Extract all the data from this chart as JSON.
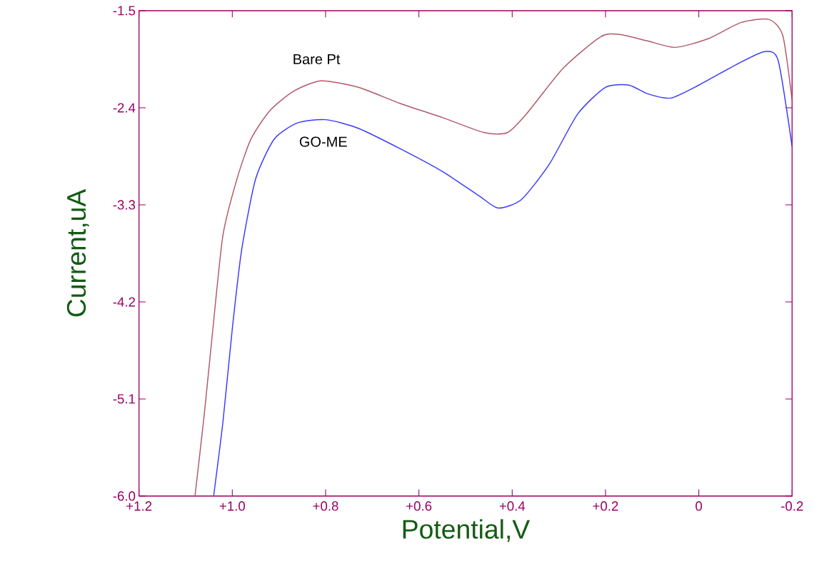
{
  "chart_data": {
    "type": "line",
    "xlabel": "Potential,V",
    "ylabel": "Current,uA",
    "xlim": [
      1.2,
      -0.2
    ],
    "ylim": [
      -6.0,
      -1.5
    ],
    "xticks": [
      {
        "value": 1.2,
        "label": "+1.2"
      },
      {
        "value": 1.0,
        "label": "+1.0"
      },
      {
        "value": 0.8,
        "label": "+0.8"
      },
      {
        "value": 0.6,
        "label": "+0.6"
      },
      {
        "value": 0.4,
        "label": "+0.4"
      },
      {
        "value": 0.2,
        "label": "+0.2"
      },
      0,
      -0.2
    ],
    "yticks": [
      -1.5,
      -2.4,
      -3.3,
      -4.2,
      -5.1,
      {
        "value": -6.0,
        "label": "-6.0"
      }
    ],
    "series": [
      {
        "name": "Bare Pt",
        "color": "#b05a6a",
        "x": [
          1.08,
          1.06,
          1.04,
          1.02,
          0.99,
          0.96,
          0.92,
          0.87,
          0.81,
          0.73,
          0.64,
          0.55,
          0.46,
          0.41,
          0.37,
          0.29,
          0.21,
          0.17,
          0.11,
          0.05,
          -0.02,
          -0.09,
          -0.15,
          -0.18,
          -0.2
        ],
        "values": [
          -6.0,
          -5.24,
          -4.38,
          -3.58,
          -3.06,
          -2.69,
          -2.43,
          -2.25,
          -2.15,
          -2.21,
          -2.36,
          -2.49,
          -2.63,
          -2.63,
          -2.46,
          -2.03,
          -1.74,
          -1.72,
          -1.78,
          -1.84,
          -1.76,
          -1.61,
          -1.58,
          -1.73,
          -2.33
        ]
      },
      {
        "name": "GO-ME",
        "color": "#3a3aff",
        "x": [
          1.04,
          1.02,
          1.0,
          0.98,
          0.95,
          0.91,
          0.86,
          0.8,
          0.73,
          0.64,
          0.55,
          0.47,
          0.43,
          0.38,
          0.32,
          0.26,
          0.2,
          0.15,
          0.11,
          0.06,
          0.0,
          -0.08,
          -0.14,
          -0.17,
          -0.2
        ],
        "values": [
          -6.0,
          -5.31,
          -4.45,
          -3.72,
          -3.06,
          -2.69,
          -2.54,
          -2.51,
          -2.59,
          -2.78,
          -2.99,
          -3.22,
          -3.33,
          -3.25,
          -2.92,
          -2.46,
          -2.21,
          -2.19,
          -2.27,
          -2.31,
          -2.19,
          -2.0,
          -1.88,
          -1.96,
          -2.76
        ]
      }
    ]
  }
}
